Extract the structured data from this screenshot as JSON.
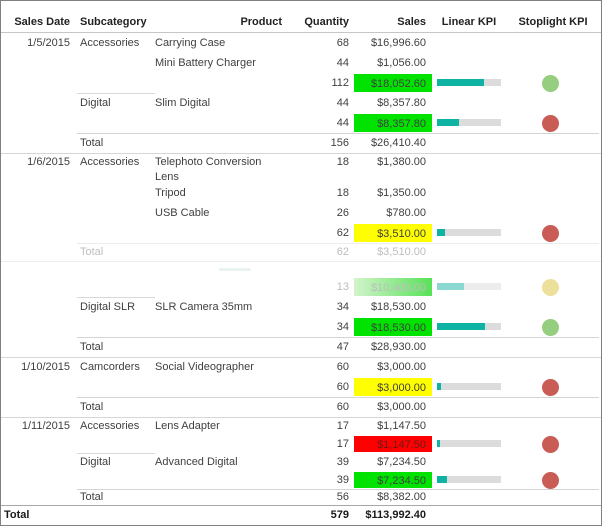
{
  "table": {
    "header": {
      "sales_date": "Sales Date",
      "subcategory": "Subcategory",
      "product": "Product",
      "quantity": "Quantity",
      "sales": "Sales",
      "linear_kpi": "Linear KPI",
      "stoplight_kpi": "Stoplight KPI"
    },
    "rows": [
      {
        "date": "1/5/2015",
        "sub": "Accessories",
        "prod": "Carrying Case",
        "qty": "68",
        "sales": "$16,996.60"
      },
      {
        "prod": "Mini Battery Charger",
        "qty": "44",
        "sales": "$1,056.00"
      },
      {
        "qty": "112",
        "sales": "$18,052.60",
        "hl": "green",
        "bar": 73,
        "light": "green"
      },
      {
        "sub": "Digital",
        "prod": "Slim Digital",
        "qty": "44",
        "sales": "$8,357.80"
      },
      {
        "qty": "44",
        "sales": "$8,357.80",
        "hl": "green",
        "bar": 35,
        "light": "red"
      },
      {
        "label": "Total",
        "qty": "156",
        "sales": "$26,410.40"
      },
      {
        "date": "1/6/2015",
        "sub": "Accessories",
        "prod": "Telephoto Conversion Lens",
        "qty": "18",
        "sales": "$1,380.00"
      },
      {
        "prod": "Tripod",
        "qty": "18",
        "sales": "$1,350.00"
      },
      {
        "prod": "USB Cable",
        "qty": "26",
        "sales": "$780.00"
      },
      {
        "qty": "62",
        "sales": "$3,510.00",
        "hl": "yellow",
        "bar": 12,
        "light": "red"
      },
      {
        "label": "Total",
        "qty": "62",
        "sales": "$3,510.00",
        "faded": true
      },
      {
        "qty": "13",
        "sales": "$10,400.00",
        "hl": "faded-green",
        "bar": 42,
        "light": "faded-yellow",
        "faded": true
      },
      {
        "sub": "Digital SLR",
        "prod": "SLR Camera 35mm",
        "qty": "34",
        "sales": "$18,530.00"
      },
      {
        "qty": "34",
        "sales": "$18,530.00",
        "hl": "green",
        "bar": 75,
        "light": "green"
      },
      {
        "label": "Total",
        "qty": "47",
        "sales": "$28,930.00"
      },
      {
        "date": "1/10/2015",
        "sub": "Camcorders",
        "prod": "Social Videographer",
        "qty": "60",
        "sales": "$3,000.00"
      },
      {
        "qty": "60",
        "sales": "$3,000.00",
        "hl": "yellow",
        "bar": 7,
        "light": "red"
      },
      {
        "label": "Total",
        "qty": "60",
        "sales": "$3,000.00"
      },
      {
        "date": "1/11/2015",
        "sub": "Accessories",
        "prod": "Lens Adapter",
        "qty": "17",
        "sales": "$1,147.50"
      },
      {
        "qty": "17",
        "sales": "$1,147.50",
        "hl": "red",
        "bar": 4,
        "light": "red"
      },
      {
        "sub": "Digital",
        "prod": "Advanced Digital",
        "qty": "39",
        "sales": "$7,234.50"
      },
      {
        "qty": "39",
        "sales": "$7,234.50",
        "hl": "green",
        "bar": 15,
        "light": "red"
      },
      {
        "label": "Total",
        "qty": "56",
        "sales": "$8,382.00"
      }
    ],
    "grand": {
      "label": "Total",
      "qty": "579",
      "sales": "$113,992.40"
    }
  },
  "colors": {
    "highlight_green": "#00e300",
    "highlight_yellow": "#ffff00",
    "highlight_red": "#ff0000",
    "kpi_bar_fill": "#0fb3a4",
    "kpi_bar_track": "#dcdcdc",
    "stoplight_green": "#95ce7f",
    "stoplight_red": "#c95c55",
    "stoplight_faded_yellow": "#ece09a"
  }
}
